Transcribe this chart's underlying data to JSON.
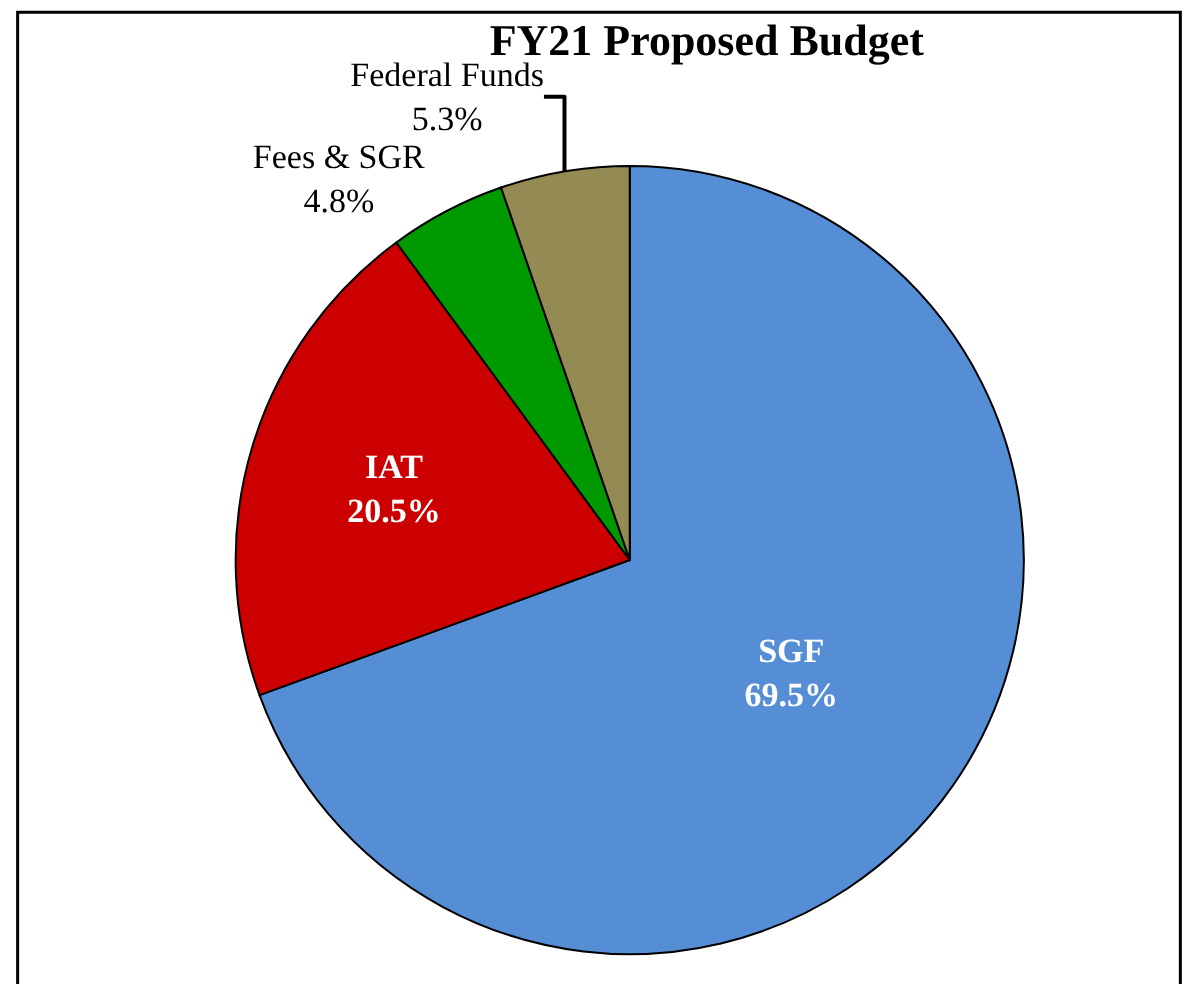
{
  "chart_data": {
    "type": "pie",
    "title": "FY21 Proposed Budget",
    "categories": [
      "SGF",
      "IAT",
      "Fees & SGR",
      "Federal Funds"
    ],
    "values": [
      69.5,
      20.5,
      4.8,
      5.3
    ],
    "colors": [
      "#558ed5",
      "#cc0000",
      "#009900",
      "#948a54"
    ],
    "value_labels": [
      "69.5%",
      "20.5%",
      "4.8%",
      "5.3%"
    ],
    "legend": false
  }
}
